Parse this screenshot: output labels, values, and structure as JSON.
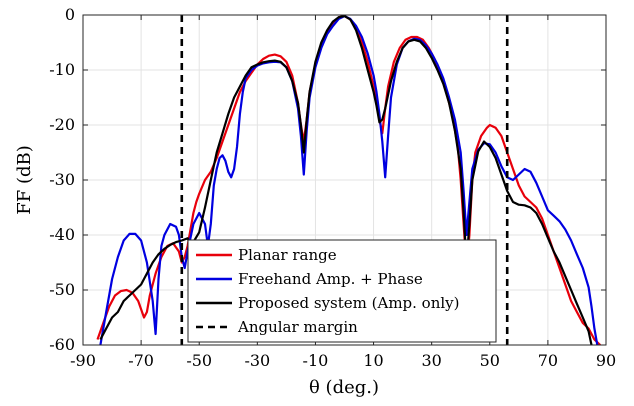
{
  "chart_data": {
    "type": "line",
    "xlabel": "θ (deg.)",
    "ylabel": "FF (dB)",
    "xlim": [
      -90,
      90
    ],
    "ylim": [
      -60,
      0
    ],
    "xticks": [
      -90,
      -70,
      -50,
      -30,
      -10,
      10,
      30,
      50,
      70,
      90
    ],
    "yticks": [
      0,
      -10,
      -20,
      -30,
      -40,
      -50,
      -60
    ],
    "grid": true,
    "legend_position": "bottom-left-of-center",
    "series": [
      {
        "name": "Planar range",
        "color": "#e8000b",
        "dash": "solid",
        "points": [
          [
            -85,
            -59
          ],
          [
            -83,
            -56
          ],
          [
            -81,
            -53
          ],
          [
            -79,
            -51
          ],
          [
            -77,
            -50.2
          ],
          [
            -75,
            -50
          ],
          [
            -73,
            -50.5
          ],
          [
            -71,
            -52
          ],
          [
            -69,
            -55
          ],
          [
            -68,
            -54
          ],
          [
            -67,
            -51
          ],
          [
            -65,
            -47
          ],
          [
            -63,
            -44
          ],
          [
            -61,
            -42
          ],
          [
            -59,
            -41.5
          ],
          [
            -57,
            -43
          ],
          [
            -56,
            -45
          ],
          [
            -55,
            -44
          ],
          [
            -54,
            -42
          ],
          [
            -53,
            -39
          ],
          [
            -52,
            -36
          ],
          [
            -51,
            -34
          ],
          [
            -50,
            -32.5
          ],
          [
            -48,
            -30
          ],
          [
            -46,
            -28.5
          ],
          [
            -44,
            -26
          ],
          [
            -42,
            -23
          ],
          [
            -40,
            -20
          ],
          [
            -38,
            -17
          ],
          [
            -36,
            -14
          ],
          [
            -34,
            -12
          ],
          [
            -32,
            -10.5
          ],
          [
            -30,
            -9
          ],
          [
            -28,
            -8
          ],
          [
            -26,
            -7.4
          ],
          [
            -24,
            -7.2
          ],
          [
            -22,
            -7.5
          ],
          [
            -20,
            -8.5
          ],
          [
            -18,
            -11
          ],
          [
            -16,
            -16
          ],
          [
            -15,
            -20
          ],
          [
            -14,
            -23
          ],
          [
            -13,
            -19
          ],
          [
            -12,
            -14
          ],
          [
            -10,
            -9
          ],
          [
            -8,
            -5.5
          ],
          [
            -6,
            -3
          ],
          [
            -4,
            -1.5
          ],
          [
            -2,
            -0.4
          ],
          [
            0,
            -0.2
          ],
          [
            2,
            -0.8
          ],
          [
            4,
            -2.5
          ],
          [
            6,
            -5
          ],
          [
            8,
            -8.5
          ],
          [
            10,
            -13
          ],
          [
            12,
            -19
          ],
          [
            13,
            -21.5
          ],
          [
            14,
            -17
          ],
          [
            15,
            -13
          ],
          [
            17,
            -8.5
          ],
          [
            19,
            -6
          ],
          [
            21,
            -4.5
          ],
          [
            23,
            -4
          ],
          [
            25,
            -4
          ],
          [
            27,
            -4.5
          ],
          [
            29,
            -6
          ],
          [
            31,
            -8
          ],
          [
            33,
            -10.5
          ],
          [
            35,
            -14
          ],
          [
            37,
            -18
          ],
          [
            39,
            -24
          ],
          [
            40,
            -30
          ],
          [
            41,
            -38
          ],
          [
            42,
            -46
          ],
          [
            43,
            -40
          ],
          [
            44,
            -30
          ],
          [
            45,
            -25
          ],
          [
            47,
            -22
          ],
          [
            49,
            -20.5
          ],
          [
            50,
            -20
          ],
          [
            52,
            -20.5
          ],
          [
            54,
            -22
          ],
          [
            56,
            -25
          ],
          [
            58,
            -28
          ],
          [
            60,
            -31
          ],
          [
            62,
            -33
          ],
          [
            64,
            -34
          ],
          [
            66,
            -35
          ],
          [
            68,
            -37
          ],
          [
            70,
            -40
          ],
          [
            72,
            -43
          ],
          [
            74,
            -46
          ],
          [
            76,
            -49
          ],
          [
            78,
            -52
          ],
          [
            80,
            -54
          ],
          [
            82,
            -56
          ],
          [
            84,
            -57
          ],
          [
            86,
            -59
          ],
          [
            88,
            -60
          ]
        ]
      },
      {
        "name": "Freehand Amp. + Phase",
        "color": "#0000e0",
        "dash": "solid",
        "points": [
          [
            -84,
            -60
          ],
          [
            -82,
            -54
          ],
          [
            -80,
            -48
          ],
          [
            -78,
            -44
          ],
          [
            -76,
            -41
          ],
          [
            -74,
            -39.8
          ],
          [
            -72,
            -39.8
          ],
          [
            -70,
            -41
          ],
          [
            -68,
            -45
          ],
          [
            -66,
            -52
          ],
          [
            -65,
            -58
          ],
          [
            -64,
            -48
          ],
          [
            -63,
            -42
          ],
          [
            -62,
            -40
          ],
          [
            -60,
            -38
          ],
          [
            -58,
            -38.5
          ],
          [
            -57,
            -40
          ],
          [
            -56,
            -44
          ],
          [
            -55,
            -46
          ],
          [
            -54,
            -43
          ],
          [
            -52,
            -38
          ],
          [
            -50,
            -36
          ],
          [
            -48,
            -38
          ],
          [
            -47,
            -42
          ],
          [
            -46,
            -38
          ],
          [
            -45,
            -31
          ],
          [
            -44,
            -28
          ],
          [
            -43,
            -26
          ],
          [
            -42,
            -25.5
          ],
          [
            -41,
            -26.5
          ],
          [
            -40,
            -28.5
          ],
          [
            -39,
            -29.5
          ],
          [
            -38,
            -28
          ],
          [
            -37,
            -24
          ],
          [
            -36,
            -18
          ],
          [
            -35,
            -14
          ],
          [
            -34,
            -11.5
          ],
          [
            -32,
            -10
          ],
          [
            -30,
            -9.2
          ],
          [
            -28,
            -8.8
          ],
          [
            -26,
            -8.6
          ],
          [
            -24,
            -8.5
          ],
          [
            -22,
            -8.6
          ],
          [
            -20,
            -9.5
          ],
          [
            -18,
            -12
          ],
          [
            -16,
            -17
          ],
          [
            -15,
            -22
          ],
          [
            -14,
            -29
          ],
          [
            -13,
            -21
          ],
          [
            -12,
            -15
          ],
          [
            -10,
            -9.5
          ],
          [
            -8,
            -6
          ],
          [
            -6,
            -3.5
          ],
          [
            -4,
            -2
          ],
          [
            -2,
            -0.7
          ],
          [
            0,
            -0.2
          ],
          [
            2,
            -0.7
          ],
          [
            4,
            -2
          ],
          [
            6,
            -4
          ],
          [
            8,
            -7
          ],
          [
            10,
            -11
          ],
          [
            11,
            -14
          ],
          [
            12,
            -18
          ],
          [
            13,
            -23
          ],
          [
            14,
            -29.5
          ],
          [
            15,
            -22
          ],
          [
            16,
            -15
          ],
          [
            18,
            -9
          ],
          [
            20,
            -6
          ],
          [
            22,
            -4.8
          ],
          [
            24,
            -4.3
          ],
          [
            26,
            -4.5
          ],
          [
            28,
            -5.5
          ],
          [
            30,
            -7
          ],
          [
            32,
            -9
          ],
          [
            34,
            -11.5
          ],
          [
            36,
            -15
          ],
          [
            38,
            -19
          ],
          [
            40,
            -25
          ],
          [
            41,
            -32
          ],
          [
            42,
            -40
          ],
          [
            43,
            -34
          ],
          [
            44,
            -28
          ],
          [
            46,
            -24.5
          ],
          [
            48,
            -23.3
          ],
          [
            50,
            -23.5
          ],
          [
            52,
            -25
          ],
          [
            54,
            -27.5
          ],
          [
            56,
            -29.5
          ],
          [
            58,
            -30
          ],
          [
            60,
            -29
          ],
          [
            62,
            -28
          ],
          [
            64,
            -28.5
          ],
          [
            66,
            -30.5
          ],
          [
            68,
            -33
          ],
          [
            70,
            -35.5
          ],
          [
            72,
            -36.5
          ],
          [
            74,
            -37.5
          ],
          [
            76,
            -39
          ],
          [
            78,
            -41
          ],
          [
            80,
            -43.5
          ],
          [
            82,
            -46
          ],
          [
            84,
            -49.5
          ],
          [
            85,
            -53
          ],
          [
            86,
            -57
          ],
          [
            87,
            -60
          ]
        ]
      },
      {
        "name": "Proposed system (Amp. only)",
        "color": "#000000",
        "dash": "solid",
        "points": [
          [
            -84,
            -59
          ],
          [
            -82,
            -57
          ],
          [
            -80,
            -55
          ],
          [
            -78,
            -54
          ],
          [
            -76,
            -52
          ],
          [
            -74,
            -51
          ],
          [
            -72,
            -50
          ],
          [
            -70,
            -49
          ],
          [
            -68,
            -47
          ],
          [
            -66,
            -45
          ],
          [
            -64,
            -43.5
          ],
          [
            -62,
            -42.5
          ],
          [
            -60,
            -41.8
          ],
          [
            -58,
            -41.3
          ],
          [
            -56,
            -41
          ],
          [
            -54,
            -40.6
          ],
          [
            -53,
            -41.8
          ],
          [
            -52,
            -41.3
          ],
          [
            -50,
            -39.5
          ],
          [
            -48,
            -35
          ],
          [
            -46,
            -30
          ],
          [
            -44,
            -25
          ],
          [
            -42,
            -21.5
          ],
          [
            -40,
            -18
          ],
          [
            -38,
            -15
          ],
          [
            -36,
            -13
          ],
          [
            -34,
            -11
          ],
          [
            -32,
            -9.5
          ],
          [
            -30,
            -9
          ],
          [
            -28,
            -8.6
          ],
          [
            -26,
            -8.4
          ],
          [
            -24,
            -8.3
          ],
          [
            -22,
            -8.5
          ],
          [
            -20,
            -9.5
          ],
          [
            -18,
            -12
          ],
          [
            -16,
            -16
          ],
          [
            -15,
            -20
          ],
          [
            -14,
            -25
          ],
          [
            -13,
            -19
          ],
          [
            -12,
            -14
          ],
          [
            -10,
            -8.5
          ],
          [
            -8,
            -5
          ],
          [
            -6,
            -2.8
          ],
          [
            -4,
            -1.2
          ],
          [
            -2,
            -0.4
          ],
          [
            0,
            -0.2
          ],
          [
            2,
            -0.8
          ],
          [
            4,
            -2.8
          ],
          [
            6,
            -6
          ],
          [
            8,
            -10
          ],
          [
            10,
            -14
          ],
          [
            11,
            -16.5
          ],
          [
            12,
            -19.5
          ],
          [
            13,
            -19
          ],
          [
            14,
            -17
          ],
          [
            16,
            -12
          ],
          [
            18,
            -8.5
          ],
          [
            20,
            -6
          ],
          [
            22,
            -4.8
          ],
          [
            24,
            -4.5
          ],
          [
            26,
            -4.8
          ],
          [
            28,
            -6
          ],
          [
            30,
            -7.8
          ],
          [
            32,
            -10
          ],
          [
            34,
            -12.5
          ],
          [
            36,
            -16
          ],
          [
            38,
            -21
          ],
          [
            40,
            -28
          ],
          [
            41,
            -36
          ],
          [
            42,
            -45
          ],
          [
            43,
            -38
          ],
          [
            44,
            -30
          ],
          [
            46,
            -24.8
          ],
          [
            48,
            -23
          ],
          [
            50,
            -24
          ],
          [
            52,
            -26
          ],
          [
            54,
            -29
          ],
          [
            56,
            -32
          ],
          [
            58,
            -34
          ],
          [
            60,
            -34.5
          ],
          [
            62,
            -34.6
          ],
          [
            64,
            -35
          ],
          [
            66,
            -36
          ],
          [
            68,
            -38
          ],
          [
            70,
            -40.5
          ],
          [
            72,
            -43
          ],
          [
            74,
            -45
          ],
          [
            76,
            -47.5
          ],
          [
            78,
            -50
          ],
          [
            80,
            -52.5
          ],
          [
            82,
            -55
          ],
          [
            84,
            -57.5
          ],
          [
            85,
            -60
          ]
        ]
      },
      {
        "name": "Angular margin",
        "color": "#000000",
        "dash": "dashed",
        "vlines": [
          -56,
          56
        ]
      }
    ]
  }
}
